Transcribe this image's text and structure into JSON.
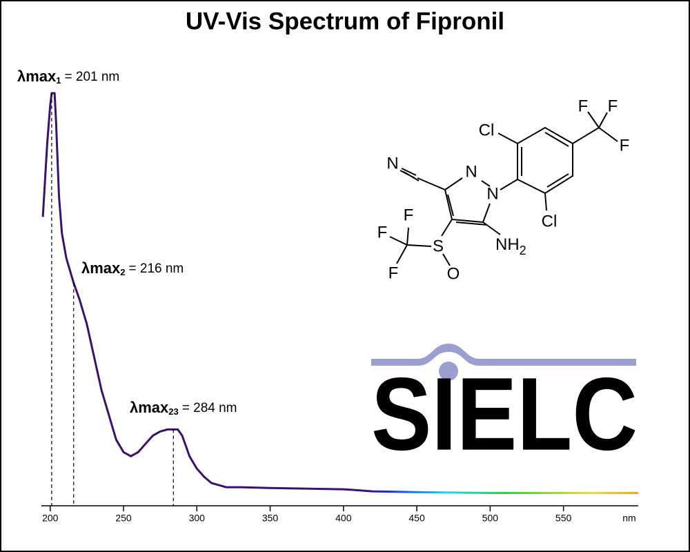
{
  "chart_data": {
    "type": "line",
    "title": "UV-Vis Spectrum of Fipronil",
    "xlabel": "nm",
    "x": [
      195,
      198,
      200,
      201,
      203,
      204,
      206,
      208,
      211,
      216,
      220,
      225,
      230,
      235,
      240,
      245,
      250,
      255,
      260,
      265,
      270,
      275,
      280,
      287,
      290,
      295,
      300,
      305,
      310,
      320,
      330,
      350,
      400,
      420,
      450,
      500,
      550,
      601
    ],
    "values": [
      0.7,
      0.88,
      0.97,
      1.0,
      1.0,
      0.93,
      0.75,
      0.66,
      0.6,
      0.54,
      0.5,
      0.44,
      0.36,
      0.28,
      0.22,
      0.16,
      0.13,
      0.12,
      0.13,
      0.15,
      0.17,
      0.18,
      0.185,
      0.185,
      0.17,
      0.12,
      0.09,
      0.07,
      0.055,
      0.045,
      0.045,
      0.043,
      0.04,
      0.035,
      0.033,
      0.031,
      0.031,
      0.031
    ],
    "xlim": [
      194,
      601
    ],
    "ylim": [
      0,
      1
    ],
    "xticks": [
      200,
      250,
      300,
      350,
      400,
      450,
      500,
      550
    ],
    "line_gradient": [
      {
        "x": 194,
        "color": "#3a0f6e"
      },
      {
        "x": 415,
        "color": "#3a0f7a"
      },
      {
        "x": 430,
        "color": "#1a2ad8"
      },
      {
        "x": 470,
        "color": "#18d8f0"
      },
      {
        "x": 510,
        "color": "#30d040"
      },
      {
        "x": 570,
        "color": "#f0e020"
      },
      {
        "x": 601,
        "color": "#f5a020"
      }
    ],
    "annotations": [
      {
        "symbol": "λmax",
        "subscript": "1",
        "text": "= 201 nm",
        "x": 201
      },
      {
        "symbol": "λmax",
        "subscript": "2",
        "text": "= 216 nm",
        "x": 216
      },
      {
        "symbol": "λmax",
        "subscript": "23",
        "text": "= 284 nm",
        "x": 284
      }
    ],
    "structure": {
      "atoms": [
        "N",
        "N",
        "N",
        "Cl",
        "Cl",
        "F",
        "F",
        "F",
        "F",
        "F",
        "F",
        "S",
        "O",
        "NH",
        "2"
      ]
    },
    "watermark": "SIELC"
  }
}
